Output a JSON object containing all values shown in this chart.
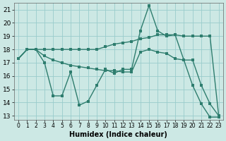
{
  "xlabel": "Humidex (Indice chaleur)",
  "background_color": "#cce8e4",
  "grid_color": "#99cccc",
  "line_color": "#2e7d6e",
  "xlim": [
    -0.5,
    23.5
  ],
  "ylim": [
    12.7,
    21.5
  ],
  "yticks": [
    13,
    14,
    15,
    16,
    17,
    18,
    19,
    20,
    21
  ],
  "xticks": [
    0,
    1,
    2,
    3,
    4,
    5,
    6,
    7,
    8,
    9,
    10,
    11,
    12,
    13,
    14,
    15,
    16,
    17,
    18,
    19,
    20,
    21,
    22,
    23
  ],
  "line1_x": [
    0,
    1,
    2,
    3,
    4,
    5,
    6,
    7,
    8,
    9,
    10,
    11,
    12,
    13,
    14,
    15,
    16,
    17,
    18,
    19,
    20,
    21,
    22,
    23
  ],
  "line1_y": [
    17.3,
    18.0,
    18.0,
    18.0,
    18.0,
    18.0,
    18.0,
    18.0,
    18.0,
    18.0,
    18.2,
    18.4,
    18.5,
    18.6,
    18.8,
    18.9,
    19.1,
    19.1,
    19.1,
    19.0,
    19.0,
    19.0,
    19.0,
    13.0
  ],
  "line2_x": [
    0,
    1,
    2,
    3,
    4,
    5,
    6,
    7,
    8,
    9,
    10,
    11,
    12,
    13,
    14,
    15,
    16,
    17,
    18,
    19,
    20,
    21,
    22,
    23
  ],
  "line2_y": [
    17.3,
    18.0,
    18.0,
    17.5,
    17.2,
    17.0,
    16.8,
    16.7,
    16.6,
    16.5,
    16.4,
    16.4,
    16.3,
    16.3,
    17.8,
    18.0,
    17.8,
    17.7,
    17.3,
    17.2,
    17.2,
    15.3,
    13.9,
    13.0
  ],
  "line3_x": [
    0,
    1,
    2,
    3,
    4,
    5,
    6,
    7,
    8,
    9,
    10,
    11,
    12,
    13,
    14,
    15,
    16,
    17,
    18,
    19,
    20,
    21,
    22,
    23
  ],
  "line3_y": [
    17.3,
    18.0,
    18.0,
    17.0,
    14.5,
    14.5,
    16.3,
    13.8,
    14.1,
    15.3,
    16.5,
    16.2,
    16.5,
    16.5,
    19.4,
    21.3,
    19.4,
    19.0,
    19.1,
    17.2,
    15.3,
    13.9,
    12.9,
    12.9
  ]
}
